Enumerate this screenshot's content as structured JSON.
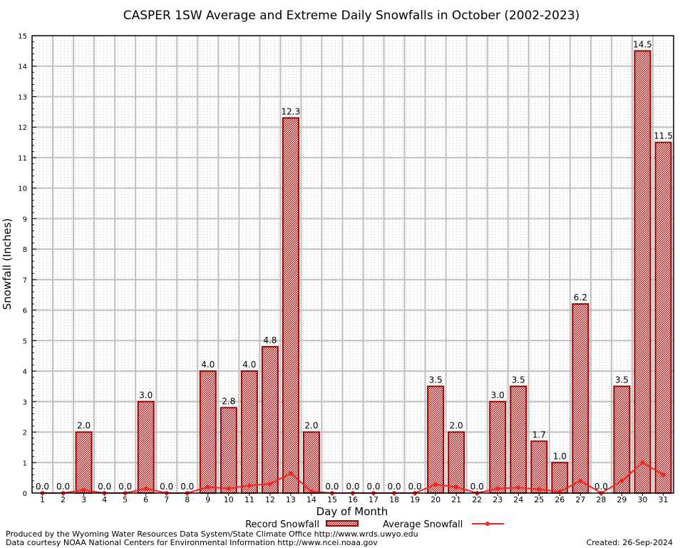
{
  "chart_data": {
    "type": "bar",
    "title": "CASPER 1SW Average and Extreme Daily Snowfalls in October (2002-2023)",
    "xlabel": "Day of Month",
    "ylabel": "Snowfall (Inches)",
    "ylim": [
      0,
      15
    ],
    "yticks": [
      "0",
      "1",
      "2",
      "3",
      "4",
      "5",
      "6",
      "7",
      "8",
      "9",
      "10",
      "11",
      "12",
      "13",
      "14",
      "15"
    ],
    "categories": [
      "1",
      "2",
      "3",
      "4",
      "5",
      "6",
      "7",
      "8",
      "9",
      "10",
      "11",
      "12",
      "13",
      "14",
      "15",
      "16",
      "17",
      "18",
      "19",
      "20",
      "21",
      "22",
      "23",
      "24",
      "25",
      "26",
      "27",
      "28",
      "29",
      "30",
      "31"
    ],
    "series": [
      {
        "name": "Record Snowfall",
        "type": "bar",
        "color": "#a00000",
        "values": [
          0.0,
          0.0,
          2.0,
          0.0,
          0.0,
          3.0,
          0.0,
          0.0,
          4.0,
          2.8,
          4.0,
          4.8,
          12.3,
          2.0,
          0.0,
          0.0,
          0.0,
          0.0,
          0.0,
          3.5,
          2.0,
          0.0,
          3.0,
          3.5,
          1.7,
          1.0,
          6.2,
          0.0,
          3.5,
          14.5,
          11.5
        ],
        "labels": [
          "0.0",
          "0.0",
          "2.0",
          "0.0",
          "0.0",
          "3.0",
          "0.0",
          "0.0",
          "4.0",
          "2.8",
          "4.0",
          "4.8",
          "12.3",
          "2.0",
          "0.0",
          "0.0",
          "0.0",
          "0.0",
          "0.0",
          "3.5",
          "2.0",
          "0.0",
          "3.0",
          "3.5",
          "1.7",
          "1.0",
          "6.2",
          "0.0",
          "3.5",
          "14.5",
          "11.5"
        ]
      },
      {
        "name": "Average Snowfall",
        "type": "line",
        "color": "#ff2020",
        "values": [
          0,
          0,
          0.1,
          0,
          0,
          0.15,
          0,
          0,
          0.2,
          0.15,
          0.25,
          0.3,
          0.65,
          0.05,
          0,
          0,
          0,
          0,
          0,
          0.28,
          0.2,
          0,
          0.15,
          0.18,
          0.12,
          0.05,
          0.4,
          0,
          0.4,
          1.0,
          0.6
        ]
      }
    ],
    "grid": true,
    "legend": "bottom-center"
  },
  "footer": {
    "line1": "Produced by the Wyoming Water Resources Data System/State Climate Office http://www.wrds.uwyo.edu",
    "line2": "Data courtesy NOAA National Centers for Environmental Information http://www.ncei.noaa.gov",
    "created": "Created: 26-Sep-2024"
  }
}
